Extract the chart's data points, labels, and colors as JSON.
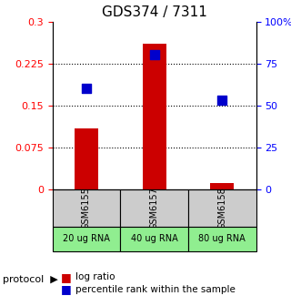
{
  "title": "GDS374 / 7311",
  "samples": [
    "GSM6155",
    "GSM6157",
    "GSM6158"
  ],
  "log_ratio": [
    0.11,
    0.26,
    0.012
  ],
  "percentile_rank": [
    60,
    80,
    53
  ],
  "protocol_labels": [
    "20 ug RNA",
    "40 ug RNA",
    "80 ug RNA"
  ],
  "ylim_left": [
    0,
    0.3
  ],
  "ylim_right": [
    0,
    100
  ],
  "yticks_left": [
    0,
    0.075,
    0.15,
    0.225,
    0.3
  ],
  "ytick_labels_left": [
    "0",
    "0.075",
    "0.15",
    "0.225",
    "0.3"
  ],
  "yticks_right": [
    0,
    25,
    50,
    75,
    100
  ],
  "ytick_labels_right": [
    "0",
    "25",
    "50",
    "75",
    "100%"
  ],
  "bar_color": "#cc0000",
  "dot_color": "#0000cc",
  "protocol_bg": "#90ee90",
  "sample_bg": "#cccccc",
  "grid_color": "#000000",
  "bar_width": 0.35,
  "dot_size": 60
}
